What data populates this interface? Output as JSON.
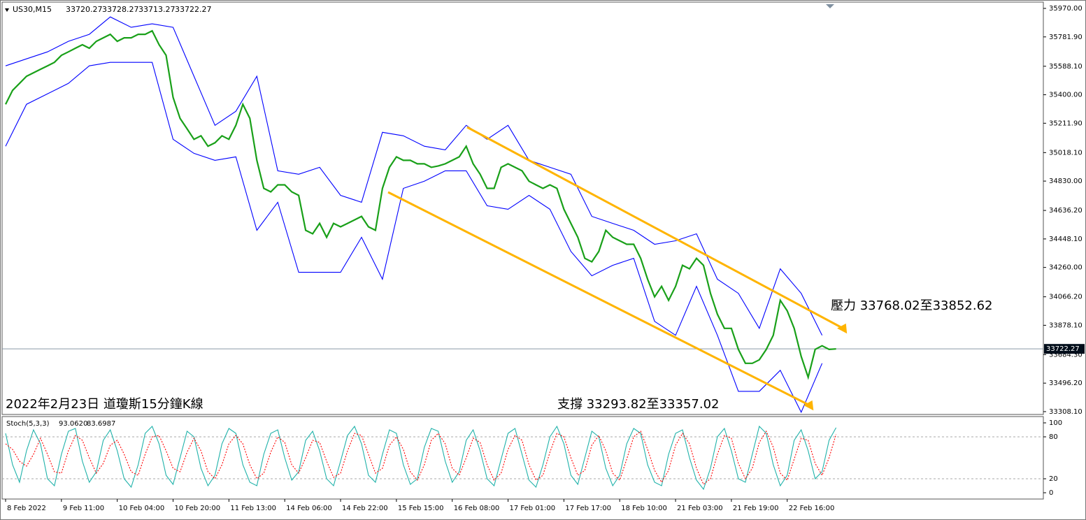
{
  "chart_data": [
    {
      "type": "line",
      "symbol": "US30,M15",
      "ohlc": [
        33720.27,
        33728.27,
        33713.27,
        33722.27
      ],
      "title": "2022年2月23日 道瓊斯15分鐘K線",
      "annotations": [
        "壓力 33768.02至33852.62",
        "支撐 33293.82至33357.02"
      ],
      "ylim": [
        33294,
        36007
      ],
      "yticks": [
        {
          "value": 35970,
          "label": "35970.00"
        },
        {
          "value": 35781.9,
          "label": "35781.90"
        },
        {
          "value": 35588.1,
          "label": "35588.10"
        },
        {
          "value": 35400,
          "label": "35400.00"
        },
        {
          "value": 35211.9,
          "label": "35211.90"
        },
        {
          "value": 35018.1,
          "label": "35018.10"
        },
        {
          "value": 34830,
          "label": "34830.00"
        },
        {
          "value": 34636.2,
          "label": "34636.20"
        },
        {
          "value": 34448.1,
          "label": "34448.10"
        },
        {
          "value": 34260,
          "label": "34260.00"
        },
        {
          "value": 34066.2,
          "label": "34066.20"
        },
        {
          "value": 33878.1,
          "label": "33878.10"
        },
        {
          "value": 33684.3,
          "label": "33684.30"
        },
        {
          "value": 33496.2,
          "label": "33496.20"
        },
        {
          "value": 33308.1,
          "label": "33308.10"
        }
      ],
      "xlim": [
        -0.5,
        148.7
      ],
      "xticks": [
        {
          "value": 0,
          "label": "8 Feb 2022"
        },
        {
          "value": 8,
          "label": "9 Feb 11:00"
        },
        {
          "value": 16,
          "label": "10 Feb 04:00"
        },
        {
          "value": 24,
          "label": "10 Feb 20:00"
        },
        {
          "value": 32,
          "label": "11 Feb 13:00"
        },
        {
          "value": 40,
          "label": "14 Feb 06:00"
        },
        {
          "value": 48,
          "label": "14 Feb 22:00"
        },
        {
          "value": 56,
          "label": "15 Feb 15:00"
        },
        {
          "value": 64,
          "label": "16 Feb 08:00"
        },
        {
          "value": 72,
          "label": "17 Feb 01:00"
        },
        {
          "value": 80,
          "label": "17 Feb 17:00"
        },
        {
          "value": 88,
          "label": "18 Feb 10:00"
        },
        {
          "value": 96,
          "label": "21 Feb 03:00"
        },
        {
          "value": 104,
          "label": "21 Feb 19:00"
        },
        {
          "value": 112,
          "label": "22 Feb 16:00"
        }
      ],
      "current_price": 33722.27,
      "series": [
        {
          "color": "#19a019",
          "values": [
            35337,
            35429,
            35475,
            35522,
            35545,
            35568,
            35591,
            35614,
            35660,
            35683,
            35707,
            35730,
            35707,
            35753,
            35776,
            35799,
            35753,
            35776,
            35776,
            35799,
            35799,
            35822,
            35730,
            35660,
            35383,
            35244,
            35175,
            35106,
            35129,
            35060,
            35083,
            35129,
            35106,
            35198,
            35337,
            35244,
            34967,
            34782,
            34759,
            34805,
            34805,
            34759,
            34736,
            34505,
            34482,
            34551,
            34459,
            34551,
            34528,
            34551,
            34574,
            34597,
            34528,
            34505,
            34782,
            34921,
            34990,
            34967,
            34967,
            34944,
            34944,
            34921,
            34930,
            34944,
            34967,
            34990,
            35060,
            34944,
            34875,
            34782,
            34782,
            34921,
            34944,
            34921,
            34898,
            34829,
            34805,
            34782,
            34805,
            34782,
            34644,
            34551,
            34459,
            34320,
            34297,
            34366,
            34505,
            34459,
            34436,
            34413,
            34413,
            34320,
            34182,
            34066,
            34135,
            34043,
            34135,
            34274,
            34251,
            34320,
            34274,
            34089,
            33951,
            33858,
            33858,
            33719,
            33627,
            33627,
            33650,
            33719,
            33812,
            34043,
            33974,
            33858,
            33673,
            33535,
            33719,
            33743,
            33719,
            33722.27
          ]
        },
        {
          "color": "#0000ff",
          "x": [
            0,
            3,
            6,
            9,
            12,
            15,
            18,
            21,
            24,
            27,
            30,
            33,
            36,
            39,
            42,
            45,
            48,
            51,
            54,
            57,
            60,
            63,
            66,
            69,
            72,
            75,
            78,
            81,
            84,
            87,
            90,
            93,
            96,
            99,
            102,
            105,
            108,
            111,
            114,
            117
          ],
          "values": [
            35591,
            35637,
            35683,
            35753,
            35799,
            35914,
            35845,
            35868,
            35845,
            35522,
            35198,
            35291,
            35522,
            34898,
            34875,
            34921,
            34736,
            34690,
            35152,
            35129,
            35060,
            35036,
            35198,
            35106,
            35198,
            34967,
            34921,
            34875,
            34597,
            34551,
            34505,
            34413,
            34436,
            34482,
            34182,
            34089,
            33858,
            34251,
            34089,
            33812
          ]
        },
        {
          "color": "#0000ff",
          "x": [
            0,
            3,
            6,
            9,
            12,
            15,
            18,
            21,
            24,
            27,
            30,
            33,
            36,
            39,
            42,
            45,
            48,
            51,
            54,
            57,
            60,
            63,
            66,
            69,
            72,
            75,
            78,
            81,
            84,
            87,
            90,
            93,
            96,
            99,
            102,
            105,
            108,
            111,
            114,
            117
          ],
          "values": [
            35060,
            35337,
            35406,
            35475,
            35591,
            35614,
            35614,
            35614,
            35106,
            35013,
            34967,
            34990,
            34505,
            34690,
            34228,
            34228,
            34228,
            34459,
            34182,
            34782,
            34829,
            34898,
            34898,
            34667,
            34644,
            34736,
            34644,
            34366,
            34205,
            34274,
            34320,
            33904,
            33812,
            34135,
            33812,
            33442,
            33442,
            33581,
            33304,
            33627
          ]
        }
      ]
    },
    {
      "type": "line",
      "label": "Stoch(5,3,3)",
      "label_values": [
        {
          "value": 93.062,
          "label": "93.0620"
        },
        {
          "value": 83.6987,
          "label": "83.6987"
        }
      ],
      "ylim": [
        -8,
        108
      ],
      "yticks": [
        100,
        80,
        20,
        0
      ],
      "levels": [
        80,
        20
      ],
      "xlim": [
        -0.5,
        148.7
      ],
      "series": [
        {
          "color": "#20b2aa",
          "values": [
            85,
            40,
            15,
            60,
            90,
            70,
            20,
            10,
            55,
            88,
            92,
            45,
            15,
            30,
            75,
            90,
            60,
            20,
            8,
            40,
            85,
            95,
            70,
            25,
            12,
            50,
            88,
            80,
            35,
            10,
            25,
            70,
            92,
            85,
            40,
            15,
            10,
            55,
            85,
            90,
            50,
            18,
            30,
            75,
            88,
            60,
            20,
            10,
            45,
            82,
            95,
            70,
            25,
            15,
            55,
            90,
            85,
            40,
            12,
            20,
            65,
            92,
            88,
            45,
            15,
            30,
            75,
            90,
            60,
            20,
            10,
            48,
            85,
            92,
            55,
            18,
            8,
            40,
            80,
            95,
            70,
            25,
            12,
            50,
            88,
            80,
            35,
            10,
            25,
            70,
            92,
            85,
            40,
            15,
            10,
            55,
            85,
            90,
            50,
            18,
            5,
            35,
            80,
            92,
            60,
            20,
            15,
            55,
            95,
            85,
            40,
            10,
            25,
            75,
            90,
            60,
            20,
            30,
            75,
            93.062
          ]
        },
        {
          "color": "#ff0000",
          "dashed": true,
          "values": [
            70,
            62,
            45,
            38,
            55,
            78,
            55,
            30,
            28,
            60,
            82,
            75,
            50,
            28,
            42,
            68,
            75,
            55,
            30,
            25,
            55,
            80,
            82,
            60,
            35,
            30,
            58,
            78,
            60,
            30,
            20,
            40,
            70,
            82,
            70,
            40,
            20,
            28,
            58,
            80,
            72,
            40,
            28,
            50,
            75,
            72,
            45,
            22,
            28,
            60,
            85,
            82,
            55,
            28,
            35,
            68,
            80,
            62,
            30,
            18,
            40,
            75,
            85,
            70,
            35,
            25,
            50,
            78,
            72,
            40,
            18,
            28,
            62,
            82,
            75,
            40,
            18,
            25,
            58,
            85,
            80,
            50,
            25,
            32,
            68,
            82,
            60,
            28,
            18,
            48,
            80,
            88,
            62,
            32,
            15,
            32,
            68,
            85,
            70,
            35,
            12,
            20,
            55,
            82,
            78,
            42,
            20,
            35,
            72,
            88,
            65,
            28,
            18,
            48,
            78,
            75,
            42,
            25,
            50,
            83.6987
          ]
        }
      ]
    }
  ]
}
